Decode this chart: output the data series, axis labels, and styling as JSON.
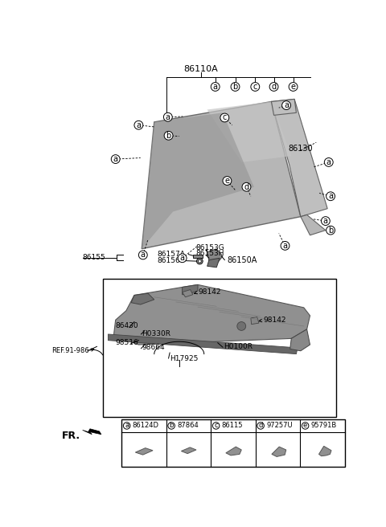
{
  "bg_color": "#ffffff",
  "title": "86110A",
  "letters": [
    "a",
    "b",
    "c",
    "d",
    "e"
  ],
  "codes": [
    "86124D",
    "87864",
    "86115",
    "97257U",
    "95791B"
  ],
  "windshield_color": "#a8a8a8",
  "seal_color": "#b8b8b8",
  "wiper_body_color": "#909090",
  "wiper_dark_color": "#686868",
  "part_color": "#999999"
}
